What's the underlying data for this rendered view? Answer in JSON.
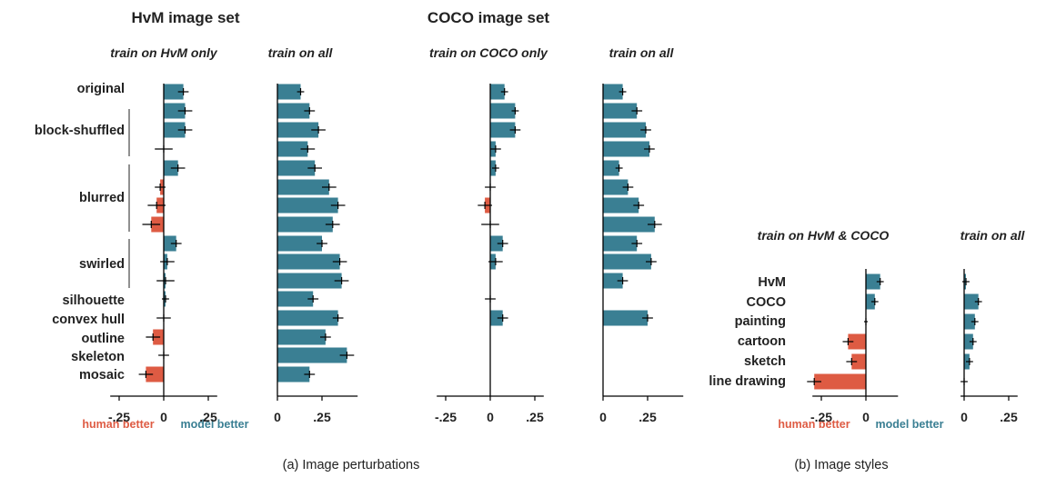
{
  "colors": {
    "model_better": "#3a7f93",
    "human_better": "#de5b43",
    "axis": "#000000",
    "error_bar": "#000000"
  },
  "titles": {
    "hvm": "HvM image set",
    "coco": "COCO image set"
  },
  "captions": {
    "a": "(a) Image perturbations",
    "b": "(b) Image styles"
  },
  "labels": {
    "human_better": "human better",
    "model_better": "model better"
  },
  "chart_data": [
    {
      "type": "bar",
      "orientation": "horizontal",
      "title": "train on HvM only",
      "group_title": "HvM image set",
      "categories": [
        "original",
        "block-shuffled 1",
        "block-shuffled 2",
        "block-shuffled 3",
        "blurred 1",
        "blurred 2",
        "blurred 3",
        "blurred 4",
        "swirled 1",
        "swirled 2",
        "swirled 3",
        "silhouette",
        "convex hull",
        "outline",
        "skeleton",
        "mosaic"
      ],
      "values": [
        0.11,
        0.12,
        0.12,
        0.0,
        0.08,
        -0.02,
        -0.04,
        -0.07,
        0.07,
        0.02,
        0.01,
        0.01,
        0.0,
        -0.06,
        0.0,
        -0.1
      ],
      "errors": [
        0.03,
        0.04,
        0.04,
        0.05,
        0.04,
        0.03,
        0.05,
        0.05,
        0.03,
        0.04,
        0.05,
        0.02,
        0.04,
        0.04,
        0.03,
        0.04
      ],
      "xlim": [
        -0.3,
        0.3
      ],
      "xticks": [
        "-.25",
        "0",
        ".25"
      ],
      "xticklabels": true
    },
    {
      "type": "bar",
      "orientation": "horizontal",
      "title": "train on all",
      "group_title": "HvM image set",
      "categories": [
        "original",
        "block-shuffled 1",
        "block-shuffled 2",
        "block-shuffled 3",
        "blurred 1",
        "blurred 2",
        "blurred 3",
        "blurred 4",
        "swirled 1",
        "swirled 2",
        "swirled 3",
        "silhouette",
        "convex hull",
        "outline",
        "skeleton",
        "mosaic"
      ],
      "values": [
        0.13,
        0.18,
        0.23,
        0.17,
        0.21,
        0.29,
        0.34,
        0.31,
        0.25,
        0.35,
        0.36,
        0.2,
        0.34,
        0.27,
        0.39,
        0.18
      ],
      "errors": [
        0.02,
        0.03,
        0.04,
        0.04,
        0.04,
        0.04,
        0.04,
        0.04,
        0.03,
        0.04,
        0.04,
        0.03,
        0.03,
        0.03,
        0.04,
        0.03
      ],
      "xlim": [
        0,
        0.45
      ],
      "xticks": [
        "0",
        ".25"
      ],
      "xticklabels": true
    },
    {
      "type": "bar",
      "orientation": "horizontal",
      "title": "train on COCO only",
      "group_title": "COCO image set",
      "categories": [
        "original",
        "block-shuffled 1",
        "block-shuffled 2",
        "block-shuffled 3",
        "blurred 1",
        "blurred 2",
        "blurred 3",
        "blurred 4",
        "swirled 1",
        "swirled 2",
        "swirled 3",
        "silhouette",
        "convex hull",
        "outline",
        "skeleton",
        "mosaic"
      ],
      "values": [
        0.08,
        0.14,
        0.14,
        0.03,
        0.03,
        0.0,
        -0.03,
        0.0,
        0.07,
        0.03,
        0.0,
        0.0,
        0.07,
        0.0,
        0.0,
        0.0
      ],
      "errors": [
        0.02,
        0.02,
        0.03,
        0.03,
        0.02,
        0.03,
        0.04,
        0.05,
        0.03,
        0.04,
        0.0,
        0.03,
        0.03,
        0.0,
        0.0,
        0.0
      ],
      "xlim": [
        -0.3,
        0.3
      ],
      "xticks": [
        "-.25",
        "0",
        ".25"
      ],
      "xticklabels": true
    },
    {
      "type": "bar",
      "orientation": "horizontal",
      "title": "train on all",
      "group_title": "COCO image set",
      "categories": [
        "original",
        "block-shuffled 1",
        "block-shuffled 2",
        "block-shuffled 3",
        "blurred 1",
        "blurred 2",
        "blurred 3",
        "blurred 4",
        "swirled 1",
        "swirled 2",
        "swirled 3",
        "silhouette",
        "convex hull",
        "outline",
        "skeleton",
        "mosaic"
      ],
      "values": [
        0.11,
        0.19,
        0.24,
        0.26,
        0.09,
        0.14,
        0.2,
        0.29,
        0.19,
        0.27,
        0.11,
        0.0,
        0.25,
        0.0,
        0.0,
        0.0
      ],
      "errors": [
        0.02,
        0.03,
        0.03,
        0.03,
        0.02,
        0.03,
        0.03,
        0.04,
        0.03,
        0.03,
        0.03,
        0.0,
        0.03,
        0.0,
        0.0,
        0.0
      ],
      "xlim": [
        0,
        0.45
      ],
      "xticks": [
        "0",
        ".25"
      ],
      "xticklabels": true
    },
    {
      "type": "bar",
      "orientation": "horizontal",
      "title": "train on HvM & COCO",
      "categories": [
        "HvM",
        "COCO",
        "painting",
        "cartoon",
        "sketch",
        "line drawing"
      ],
      "values": [
        0.08,
        0.05,
        0.0,
        -0.1,
        -0.08,
        -0.29
      ],
      "errors": [
        0.02,
        0.02,
        0.01,
        0.03,
        0.03,
        0.04
      ],
      "xlim": [
        -0.3,
        0.18
      ],
      "xticks": [
        "-.25",
        "0"
      ],
      "xticklabels": true
    },
    {
      "type": "bar",
      "orientation": "horizontal",
      "title": "train on all",
      "categories": [
        "HvM",
        "COCO",
        "painting",
        "cartoon",
        "sketch",
        "line drawing"
      ],
      "values": [
        0.01,
        0.08,
        0.06,
        0.05,
        0.03,
        0.0
      ],
      "errors": [
        0.02,
        0.02,
        0.02,
        0.02,
        0.02,
        0.02
      ],
      "xlim": [
        -0.02,
        0.3
      ],
      "xticks": [
        "0",
        ".25"
      ],
      "xticklabels": true
    }
  ],
  "row_labels": {
    "a": [
      "original",
      "block-shuffled",
      "blurred",
      "swirled",
      "silhouette",
      "convex hull",
      "outline",
      "skeleton",
      "mosaic"
    ],
    "b": [
      "HvM",
      "COCO",
      "painting",
      "cartoon",
      "sketch",
      "line drawing"
    ]
  }
}
